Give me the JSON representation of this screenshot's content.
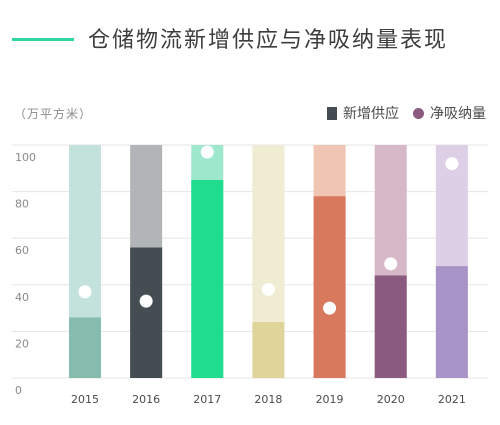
{
  "title": "仓储物流新增供应与净吸纳量表现",
  "unit": "（万平方米）",
  "legend": {
    "supply_label": "新增供应",
    "absorption_label": "净吸纳量",
    "supply_color": "#434d52",
    "absorption_color": "#8a5b7e"
  },
  "chart_data": {
    "type": "bar",
    "categories": [
      "2015",
      "2016",
      "2017",
      "2018",
      "2019",
      "2020",
      "2021"
    ],
    "series": [
      {
        "name": "新增供应",
        "values": [
          26,
          56,
          85,
          24,
          78,
          44,
          48
        ]
      },
      {
        "name": "净吸纳量",
        "values": [
          37,
          33,
          97,
          38,
          30,
          49,
          92
        ]
      }
    ],
    "bar_colors": [
      {
        "top": "#c4e2dc",
        "bottom": "#86bcae"
      },
      {
        "top": "#b1b5b7",
        "bottom": "#434d52"
      },
      {
        "top": "#9fe8cd",
        "bottom": "#1fdc8e"
      },
      {
        "top": "#f0ecd4",
        "bottom": "#dfd59a"
      },
      {
        "top": "#f0c5b4",
        "bottom": "#d8785c"
      },
      {
        "top": "#d6b8c8",
        "bottom": "#8a5b7e"
      },
      {
        "top": "#ddcfe6",
        "bottom": "#a793c6"
      }
    ],
    "ylim": [
      0,
      100
    ],
    "yticks": [
      0,
      20,
      40,
      60,
      80,
      100
    ],
    "grid": true
  }
}
